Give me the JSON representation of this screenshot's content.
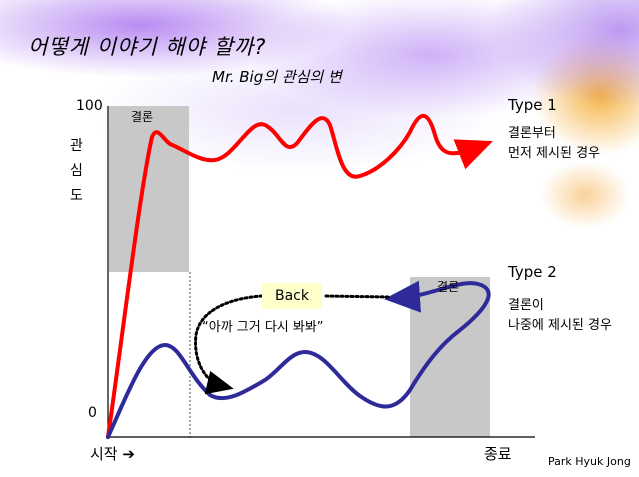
{
  "slide": {
    "title": "어떻게 이야기 해야 할까?",
    "subtitle": "Mr. Big의 관심의 변",
    "y_axis": {
      "label_chars": [
        "관",
        "심",
        "도"
      ],
      "max_label": "100",
      "min_label": "0"
    },
    "x_axis": {
      "start_label": "시작",
      "start_arrow": "➔",
      "end_label": "종료"
    },
    "type1": {
      "title": "Type 1",
      "desc_line1": "결론부터",
      "desc_line2": "먼저 제시된 경우",
      "color": "#ff0000"
    },
    "type2": {
      "title": "Type 2",
      "desc_line1": "결론이",
      "desc_line2": "나중에 제시된 경우",
      "color": "#2e2a9a"
    },
    "conclusion_label_1": "결론",
    "conclusion_label_2": "결론",
    "back_label": "Back",
    "quote": "“아까 그거 다시 봐봐”",
    "author": "Park Hyuk Jong"
  }
}
